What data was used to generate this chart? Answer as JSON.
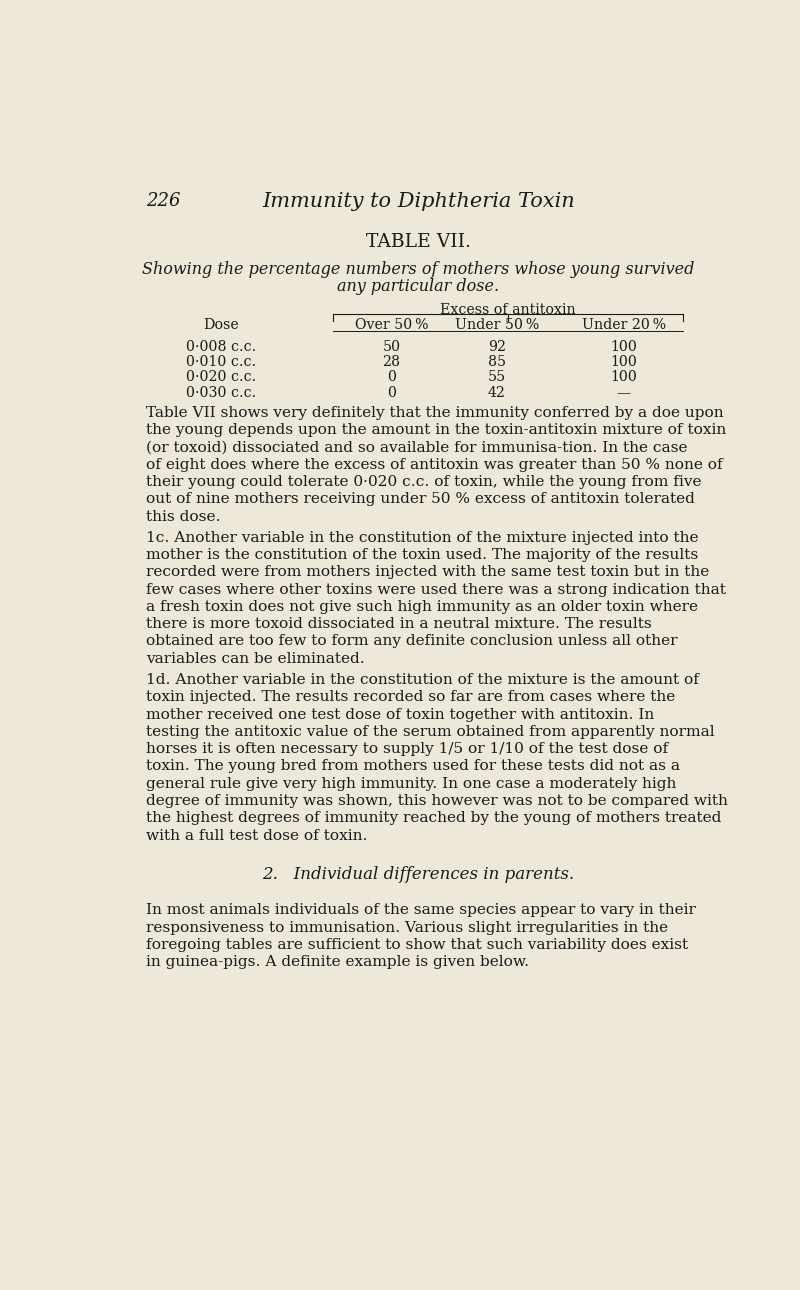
{
  "bg_color": "#ede8d8",
  "page_number": "226",
  "header_title": "Immunity to Diphtheria Toxin",
  "table_title": "TABLE VII.",
  "table_subtitle_line1": "Showing the percentage numbers of mothers whose young survived",
  "table_subtitle_line2": "any particular dose.",
  "excess_label": "Excess of antitoxin",
  "col_headers": [
    "Dose",
    "Over 50 %",
    "Under 50 %",
    "Under 20 %"
  ],
  "table_rows": [
    [
      "0·008 c.c.",
      "50",
      "92",
      "100"
    ],
    [
      "0·010 c.c.",
      "28",
      "85",
      "100"
    ],
    [
      "0·020 c.c.",
      "0",
      "55",
      "100"
    ],
    [
      "0·030 c.c.",
      "0",
      "42",
      "—"
    ]
  ],
  "section_heading": "2.   Individual differences in parents.",
  "text_color": "#1a1a1a"
}
